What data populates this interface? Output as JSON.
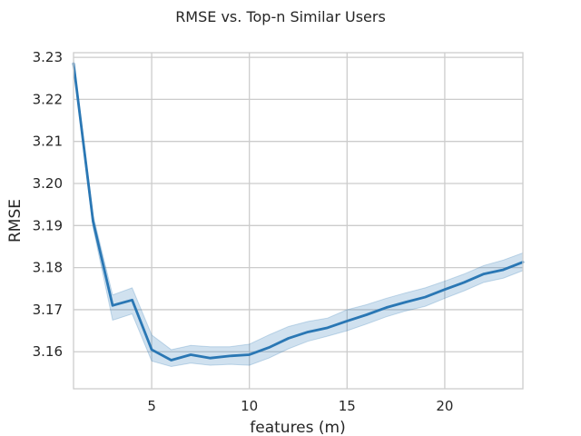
{
  "chart_data": {
    "type": "line",
    "title": "RMSE vs. Top-n Similar Users",
    "xlabel": "features (m)",
    "ylabel": "RMSE",
    "xlim": [
      1,
      24
    ],
    "ylim": [
      3.1512,
      3.2311
    ],
    "xticks": [
      5,
      10,
      15,
      20
    ],
    "xtick_labels": [
      "5",
      "10",
      "15",
      "20"
    ],
    "yticks": [
      3.16,
      3.17,
      3.18,
      3.19,
      3.2,
      3.21,
      3.22,
      3.23
    ],
    "ytick_labels": [
      "3.16",
      "3.17",
      "3.18",
      "3.19",
      "3.20",
      "3.21",
      "3.22",
      "3.23"
    ],
    "grid": true,
    "line_color": "#2a77b4",
    "band_color": "#2a77b4",
    "series": [
      {
        "x": [
          1,
          2,
          3,
          4,
          5,
          6,
          7,
          8,
          9,
          10,
          11,
          12,
          13,
          14,
          15,
          16,
          17,
          18,
          19,
          20,
          21,
          22,
          23,
          24
        ],
        "values": [
          3.2285,
          3.191,
          3.171,
          3.1723,
          3.1605,
          3.158,
          3.1593,
          3.1585,
          3.159,
          3.1593,
          3.161,
          3.1632,
          3.1647,
          3.1657,
          3.1673,
          3.1688,
          3.1705,
          3.1718,
          3.173,
          3.1748,
          3.1765,
          3.1785,
          3.1795,
          3.1813
        ],
        "ci_low": [
          3.2275,
          3.1895,
          3.1675,
          3.169,
          3.1578,
          3.1565,
          3.1573,
          3.1568,
          3.157,
          3.1568,
          3.1585,
          3.1607,
          3.1625,
          3.1637,
          3.165,
          3.1666,
          3.1683,
          3.1697,
          3.1708,
          3.1727,
          3.1745,
          3.1765,
          3.1775,
          3.1793
        ],
        "ci_high": [
          3.2295,
          3.1925,
          3.1735,
          3.1752,
          3.164,
          3.1605,
          3.1615,
          3.1612,
          3.1612,
          3.1618,
          3.164,
          3.166,
          3.1672,
          3.168,
          3.17,
          3.1712,
          3.1727,
          3.174,
          3.1752,
          3.1768,
          3.1785,
          3.1805,
          3.1818,
          3.1835
        ]
      }
    ]
  }
}
